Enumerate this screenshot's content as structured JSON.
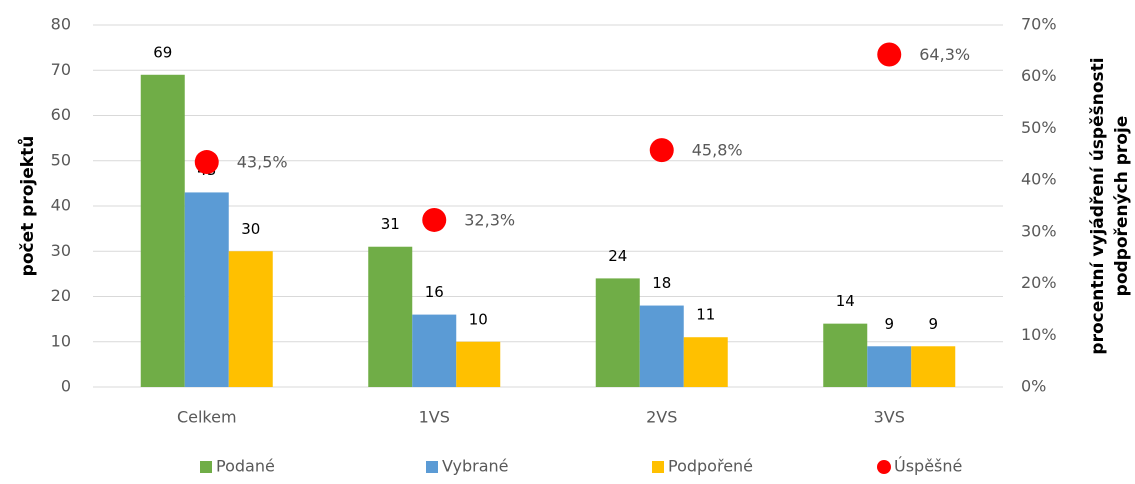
{
  "chart_data": {
    "type": "bar",
    "categories": [
      "Celkem",
      "1VS",
      "2VS",
      "3VS"
    ],
    "series": [
      {
        "name": "Podané",
        "color": "#70ad47",
        "values": [
          69,
          31,
          24,
          14
        ]
      },
      {
        "name": "Vybrané",
        "color": "#5b9bd5",
        "values": [
          43,
          16,
          18,
          9
        ]
      },
      {
        "name": "Podpořené",
        "color": "#ffc000",
        "values": [
          30,
          10,
          11,
          9
        ]
      },
      {
        "name": "Úspěšné",
        "type": "scatter",
        "axis": "y2",
        "color": "#ff0000",
        "values": [
          43.5,
          32.3,
          45.8,
          64.3
        ],
        "value_labels": [
          "43,5%",
          "32,3%",
          "45,8%",
          "64,3%"
        ]
      }
    ],
    "ylabel": "počet projektů",
    "y2label": [
      "procentní vyjádření úspěšnosti",
      "podpořených proje"
    ],
    "ylim": [
      0,
      80
    ],
    "yticks": [
      0,
      10,
      20,
      30,
      40,
      50,
      60,
      70,
      80
    ],
    "y2lim": [
      0,
      70
    ],
    "y2ticks": [
      {
        "value": 0,
        "label": "0%"
      },
      {
        "value": 10,
        "label": "10%"
      },
      {
        "value": 20,
        "label": "20%"
      },
      {
        "value": 30,
        "label": "30%"
      },
      {
        "value": 40,
        "label": "40%"
      },
      {
        "value": 50,
        "label": "50%"
      },
      {
        "value": 60,
        "label": "60%"
      },
      {
        "value": 70,
        "label": "70%"
      }
    ],
    "grid": true,
    "legend": "bottom"
  }
}
